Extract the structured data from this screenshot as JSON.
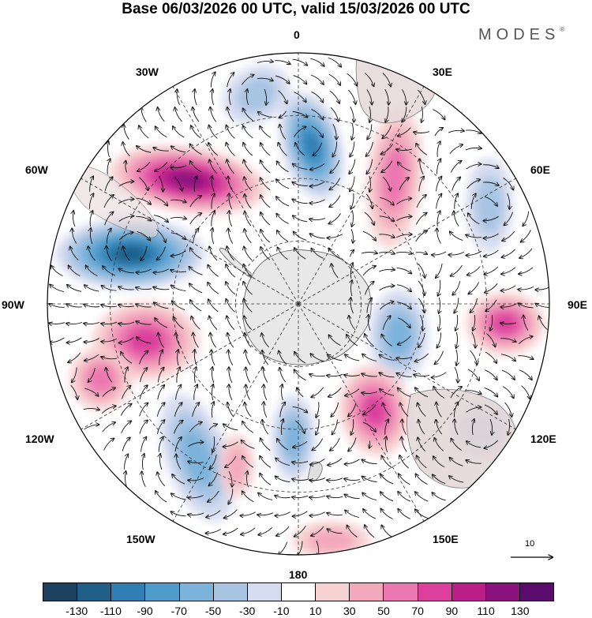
{
  "title": "Base 06/03/2026 00 UTC, valid 15/03/2026 00 UTC",
  "logo": "MODES",
  "logo_mark": "®",
  "longitude_labels": {
    "lon_0": "0",
    "lon_30e": "30E",
    "lon_60e": "60E",
    "lon_90e": "90E",
    "lon_120e": "120E",
    "lon_150e": "150E",
    "lon_180": "180",
    "lon_150w": "150W",
    "lon_120w": "120W",
    "lon_90w": "90W",
    "lon_60w": "60W",
    "lon_30w": "30W"
  },
  "vector_scale_label": "10",
  "colorbar": {
    "labels": [
      "-130",
      "-110",
      "-90",
      "-70",
      "-50",
      "-30",
      "-10",
      "10",
      "30",
      "50",
      "70",
      "90",
      "110",
      "130"
    ],
    "colors": [
      "#1d4260",
      "#1f5f88",
      "#2f7fb4",
      "#4f9ccc",
      "#7bb3da",
      "#a8c5e3",
      "#d6dcef",
      "#ffffff",
      "#f7d2d2",
      "#f3a9bc",
      "#eb77b0",
      "#dc3f9c",
      "#bb1d89",
      "#8a137e",
      "#5b0b6c"
    ]
  },
  "anomalies": [
    {
      "kind": "neg",
      "strength": 5
    },
    {
      "kind": "pos",
      "strength": 6
    },
    {
      "kind": "neg",
      "strength": 6
    },
    {
      "kind": "pos",
      "strength": 4
    },
    {
      "kind": "neg",
      "strength": 3
    },
    {
      "kind": "pos",
      "strength": 4
    },
    {
      "kind": "pos",
      "strength": 3
    },
    {
      "kind": "neg",
      "strength": 3
    },
    {
      "kind": "pos",
      "strength": 4
    },
    {
      "kind": "neg",
      "strength": 3
    },
    {
      "kind": "pos",
      "strength": 3
    },
    {
      "kind": "pos",
      "strength": 2
    },
    {
      "kind": "neg",
      "strength": 2
    },
    {
      "kind": "neg",
      "strength": 2
    },
    {
      "kind": "pos",
      "strength": 2
    },
    {
      "kind": "neg",
      "strength": 2
    }
  ]
}
